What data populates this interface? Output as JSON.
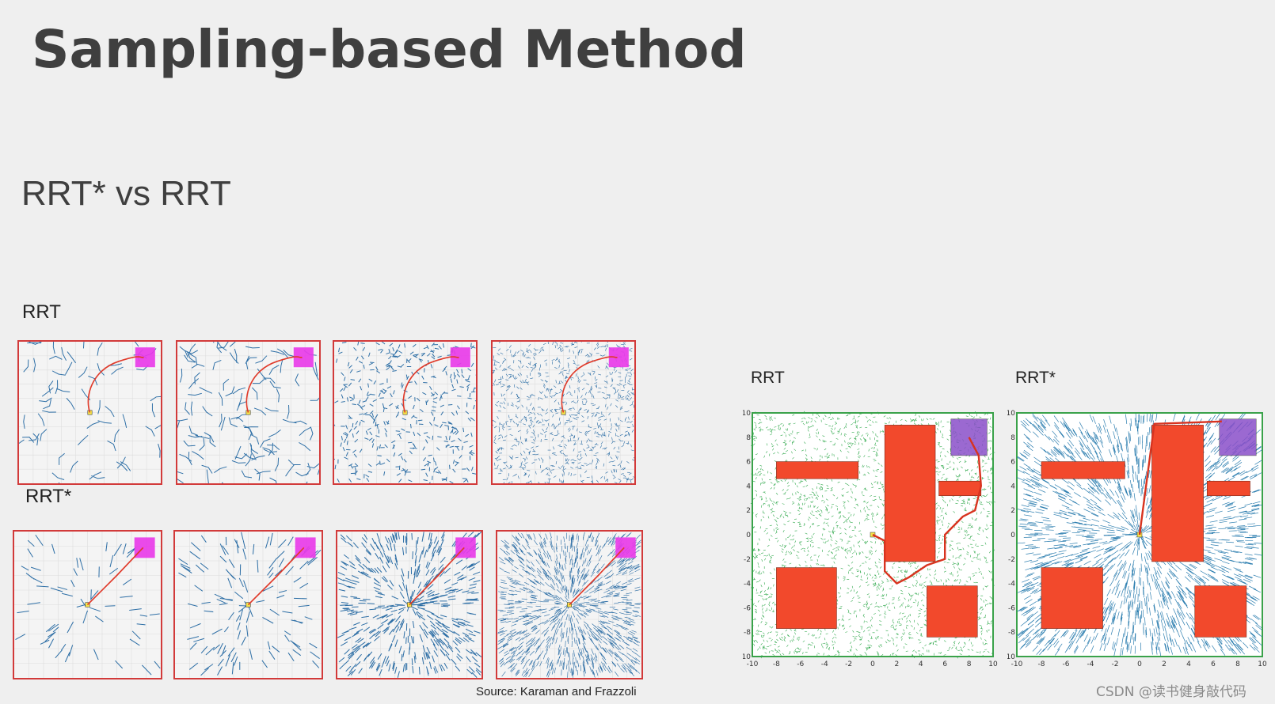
{
  "slide": {
    "title": "Sampling-based Method",
    "subtitle": "RRT* vs RRT"
  },
  "left_figure": {
    "row_labels": [
      "RRT",
      "RRT*"
    ],
    "source": "Source: Karaman and Frazzoli",
    "colors": {
      "tree": "#2e6fa6",
      "path": "#e03a2a",
      "goal": "#e83be8",
      "border": "#d23a3a"
    }
  },
  "right_figure": {
    "plot_labels": [
      "RRT",
      "RRT*"
    ],
    "x_ticks": [
      "-10",
      "-8",
      "-6",
      "-4",
      "-2",
      "0",
      "2",
      "4",
      "6",
      "8",
      "10"
    ],
    "y_ticks": [
      "10",
      "8",
      "6",
      "4",
      "2",
      "0",
      "-2",
      "-4",
      "-6",
      "-8",
      "10"
    ],
    "colors": {
      "rrt_tree": "#2ea84a",
      "rrtstar_tree": "#2e7fb0",
      "obstacle": "#f2492c",
      "goal": "#8a4fc9"
    }
  },
  "watermark": "CSDN @读书健身敲代码"
}
